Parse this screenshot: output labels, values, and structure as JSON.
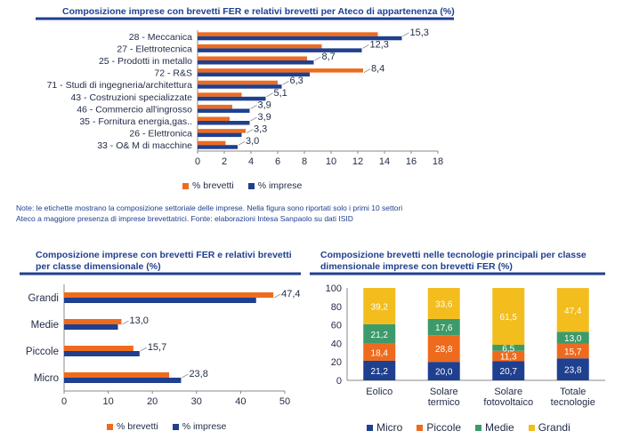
{
  "colors": {
    "brevetti": "#ee6b1e",
    "imprese": "#1f3f8f",
    "micro": "#1f3f8f",
    "piccole": "#ee6b1e",
    "medie": "#3d9a6a",
    "grandi": "#f2bd1d",
    "rule": "#1f3f8f"
  },
  "notes": [
    "Note: le etichette mostrano la composizione settoriale delle imprese. Nella figura sono riportati solo i primi 10 settori",
    "Ateco a maggiore presenza di imprese brevettatrici. Fonte: elaborazioni Intesa Sanpaolo su dati ISID"
  ],
  "chart_data": [
    {
      "type": "bar",
      "orientation": "horizontal",
      "title": "Composizione imprese con brevetti FER e relativi brevetti per Ateco di appartenenza (%)",
      "categories": [
        "28 - Meccanica",
        "27 - Elettrotecnica",
        "25 - Prodotti in metallo",
        "72 - R&S",
        "71 - Studi di ingegneria/architettura",
        "43 - Costruzioni specializzate",
        "46 - Commercio all'ingrosso",
        "35 - Fornitura energia,gas..",
        "26 - Elettronica",
        "33 - O& M di macchine"
      ],
      "series": [
        {
          "name": "% brevetti",
          "values": [
            13.5,
            9.3,
            8.2,
            12.4,
            6.0,
            3.3,
            2.6,
            2.4,
            3.6,
            2.1
          ]
        },
        {
          "name": "% imprese",
          "values": [
            15.3,
            12.3,
            8.7,
            8.4,
            6.3,
            5.1,
            3.9,
            3.9,
            3.3,
            3.0
          ]
        }
      ],
      "data_labels": [
        "15,3",
        "12,3",
        "8,7",
        "8,4",
        "6,3",
        "5,1",
        "3,9",
        "3,9",
        "3,3",
        "3,0"
      ],
      "xlim": [
        0,
        18
      ],
      "xticks": [
        "0",
        "2",
        "4",
        "6",
        "8",
        "10",
        "12",
        "14",
        "16",
        "18"
      ],
      "legend": [
        "% brevetti",
        "% imprese"
      ]
    },
    {
      "type": "bar",
      "orientation": "horizontal",
      "title": "Composizione imprese con brevetti FER e relativi brevetti per classe dimensionale (%)",
      "categories": [
        "Grandi",
        "Medie",
        "Piccole",
        "Micro"
      ],
      "series": [
        {
          "name": "% brevetti",
          "values": [
            47.4,
            13.0,
            15.7,
            23.8
          ]
        },
        {
          "name": "% imprese",
          "values": [
            43.5,
            12.2,
            17.1,
            26.5
          ]
        }
      ],
      "data_labels": [
        "47,4",
        "13,0",
        "15,7",
        "23,8"
      ],
      "xlim": [
        0,
        50
      ],
      "xticks": [
        "0",
        "10",
        "20",
        "30",
        "40",
        "50"
      ],
      "legend": [
        "% brevetti",
        "% imprese"
      ]
    },
    {
      "type": "bar",
      "stacked": true,
      "title": "Composizione brevetti nelle tecnologie principali per classe dimensionale imprese con brevetti FER (%)",
      "categories": [
        [
          "Eolico"
        ],
        [
          "Solare",
          "termico"
        ],
        [
          "Solare",
          "fotovoltaico"
        ],
        [
          "Totale",
          "tecnologie"
        ]
      ],
      "series": [
        {
          "name": "Micro",
          "values": [
            21.2,
            20.0,
            20.7,
            23.8
          ]
        },
        {
          "name": "Piccole",
          "values": [
            18.4,
            28.8,
            11.3,
            15.7
          ]
        },
        {
          "name": "Medie",
          "values": [
            21.2,
            17.6,
            6.5,
            13.0
          ]
        },
        {
          "name": "Grandi",
          "values": [
            39.2,
            33.6,
            61.5,
            47.4
          ]
        }
      ],
      "labels": [
        [
          "21,2",
          "18,4",
          "21,2",
          "39,2"
        ],
        [
          "20,0",
          "28,8",
          "17,6",
          "33,6"
        ],
        [
          "20,7",
          "11,3",
          "6,5",
          "61,5"
        ],
        [
          "23,8",
          "15,7",
          "13,0",
          "47,4"
        ]
      ],
      "ylim": [
        0,
        100
      ],
      "yticks": [
        "0",
        "20",
        "40",
        "60",
        "80",
        "100"
      ],
      "legend": [
        "Micro",
        "Piccole",
        "Medie",
        "Grandi"
      ]
    }
  ]
}
